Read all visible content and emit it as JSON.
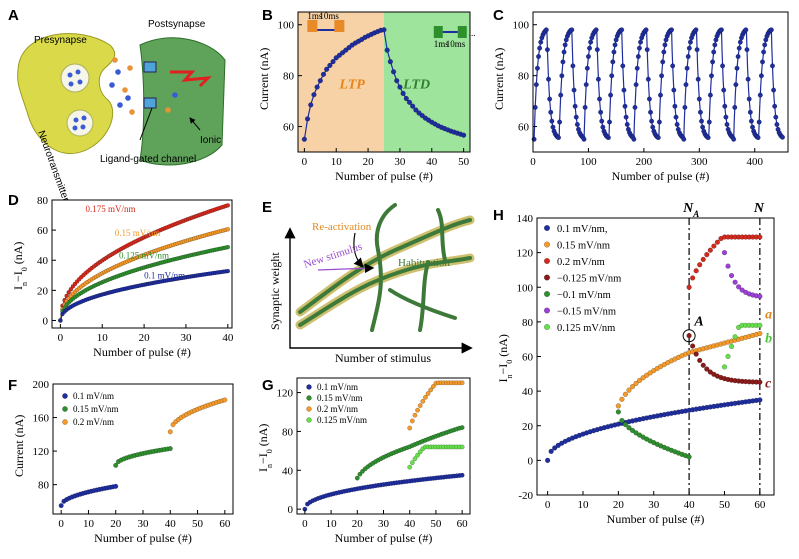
{
  "colors": {
    "navy": "#1f2e9e",
    "orange": "#f39a2b",
    "red": "#d42a1e",
    "green": "#2f8f2f",
    "lightgreen": "#66e04a",
    "darkred": "#8b1a1a",
    "purple": "#9b3fd6",
    "ltp_bg": "#f6d2a6",
    "ltd_bg": "#9fe49d"
  },
  "panelA": {
    "label": "A",
    "presynapse": "Presynapse",
    "postsynapse": "Postsynapse",
    "neurotransmitter": "Neurotransmitter",
    "ligand": "Ligand-gated channel",
    "ionic": "Ionic"
  },
  "panelE": {
    "label": "E",
    "reactivation": "Re-activation",
    "new_stimulus": "New stimulus",
    "habituation": "Habituation",
    "ylabel": "Synaptic weight",
    "xlabel": "Number of stimulus"
  },
  "chart_data": [
    {
      "panel": "B",
      "type": "scatter",
      "xlabel": "Number of pulse (#)",
      "ylabel": "Current (nA)",
      "xlim": [
        -2,
        52
      ],
      "ylim": [
        50,
        105
      ],
      "xticks": [
        0,
        10,
        20,
        30,
        40,
        50
      ],
      "yticks": [
        60,
        80,
        100
      ],
      "regions": [
        {
          "label": "LTP",
          "x": [
            -2,
            25
          ]
        },
        {
          "label": "LTD",
          "x": [
            25,
            52
          ]
        }
      ],
      "inset_labels": [
        "1ms",
        "10ms",
        "1ms",
        "10ms",
        "..."
      ],
      "series": [
        {
          "x": [
            0,
            1,
            2,
            3,
            4,
            5,
            6,
            7,
            8,
            9,
            10,
            11,
            12,
            13,
            14,
            15,
            16,
            17,
            18,
            19,
            20,
            21,
            22,
            23,
            24,
            25,
            26,
            27,
            28,
            29,
            30,
            31,
            32,
            33,
            34,
            35,
            36,
            37,
            38,
            39,
            40,
            41,
            42,
            43,
            44,
            45,
            46,
            47,
            48,
            49,
            50
          ],
          "y": [
            55,
            63,
            68.5,
            72.5,
            75.5,
            78,
            80.5,
            82.5,
            84,
            85.5,
            87,
            88,
            89,
            90,
            91,
            92,
            92.8,
            93.5,
            94.2,
            95,
            95.6,
            96.2,
            96.8,
            97.3,
            97.8,
            98,
            90,
            85.5,
            81.5,
            78,
            75.5,
            73,
            71,
            69.5,
            68,
            66.5,
            65.3,
            64.3,
            63.3,
            62.5,
            61.7,
            61,
            60.3,
            59.7,
            59.2,
            58.7,
            58.2,
            57.8,
            57.4,
            57,
            56.6
          ]
        }
      ]
    },
    {
      "panel": "C",
      "type": "line",
      "xlabel": "Number of pulse (#)",
      "ylabel": "Current (nA)",
      "xlim": [
        0,
        460
      ],
      "ylim": [
        50,
        105
      ],
      "xticks": [
        0,
        100,
        200,
        300,
        400
      ],
      "yticks": [
        60,
        80,
        100
      ],
      "cycles": 10,
      "cycle_length": 45,
      "low": 55,
      "high": 98
    },
    {
      "panel": "D",
      "type": "scatter",
      "xlabel": "Number of pulse (#)",
      "ylabel": "I_n−I_0 (nA)",
      "xlim": [
        -2,
        41
      ],
      "ylim": [
        -5,
        80
      ],
      "xticks": [
        0,
        10,
        20,
        30,
        40
      ],
      "yticks": [
        0,
        20,
        40,
        60,
        80
      ],
      "series": [
        {
          "name": "0.175 mV/nm",
          "k": 13.5,
          "p": 0.47
        },
        {
          "name": "0.15 mV/nm",
          "k": 10.5,
          "p": 0.475
        },
        {
          "name": "0.125 mV/nm",
          "k": 8.6,
          "p": 0.47
        },
        {
          "name": "0.1 mV/nm",
          "k": 5.9,
          "p": 0.465
        }
      ]
    },
    {
      "panel": "F",
      "type": "scatter",
      "xlabel": "Number of pulse (#)",
      "ylabel": "Current (nA)",
      "xlim": [
        -3,
        63
      ],
      "ylim": [
        45,
        200
      ],
      "xticks": [
        0,
        10,
        20,
        30,
        40,
        50,
        60
      ],
      "yticks": [
        80,
        120,
        160,
        200
      ],
      "series": [
        {
          "name": "0.1 mV/nm",
          "x_range": [
            0,
            20
          ],
          "y_start": 55,
          "y_end": 78
        },
        {
          "name": "0.15 mV/nm",
          "x_range": [
            20,
            40
          ],
          "y_start": 103,
          "y_end": 123
        },
        {
          "name": "0.2 mV/nm",
          "x_range": [
            40,
            60
          ],
          "y_start": 143,
          "y_end": 181
        }
      ]
    },
    {
      "panel": "G",
      "type": "scatter",
      "xlabel": "Number of pulse (#)",
      "ylabel": "I_n−I_0 (nA)",
      "xlim": [
        -3,
        63
      ],
      "ylim": [
        -5,
        135
      ],
      "xticks": [
        0,
        10,
        20,
        30,
        40,
        50,
        60
      ],
      "yticks": [
        0,
        40,
        80,
        120
      ],
      "series": [
        {
          "name": "0.1 mV/nm",
          "x_range": [
            0,
            60
          ],
          "end": 35
        },
        {
          "name": "0.15 mV/nm",
          "x_range": [
            20,
            60
          ],
          "end": 84
        },
        {
          "name": "0.2 mV/nm",
          "x_range": [
            40,
            60
          ],
          "end": 130
        },
        {
          "name": "0.125 mV/nm",
          "x_range": [
            40,
            60
          ],
          "end": 64
        }
      ]
    },
    {
      "panel": "H",
      "type": "scatter",
      "xlabel": "Number of pulse (#)",
      "ylabel": "I_n−I_0 (nA)",
      "xlim": [
        -3,
        64
      ],
      "ylim": [
        -20,
        140
      ],
      "xticks": [
        0,
        10,
        20,
        30,
        40,
        50,
        60
      ],
      "yticks": [
        -20,
        0,
        20,
        40,
        60,
        80,
        100,
        120,
        140
      ],
      "vlines": [
        {
          "x": 40,
          "label": "N_A"
        },
        {
          "x": 60,
          "label": "N"
        }
      ],
      "annotations": [
        "A",
        "a",
        "b",
        "c"
      ],
      "series": [
        {
          "name": "0.1 mV/nm,",
          "x_range": [
            0,
            60
          ],
          "end": 35
        },
        {
          "name": "0.15 mV/nm",
          "x_range": [
            20,
            60
          ],
          "end": 83
        },
        {
          "name": "0.2 mV/nm",
          "x_range": [
            40,
            60
          ],
          "end": 129
        },
        {
          "name": "−0.125 mV/nm",
          "x_range": [
            40,
            60
          ],
          "end": 45
        },
        {
          "name": "−0.1 mV/nm",
          "x_range": [
            20,
            40
          ],
          "end": 2
        },
        {
          "name": "−0.15 mV/nm",
          "x_range": [
            50,
            60
          ],
          "end": 94
        },
        {
          "name": "0.125 mV/nm",
          "x_range": [
            50,
            60
          ],
          "end": 78
        }
      ]
    }
  ]
}
